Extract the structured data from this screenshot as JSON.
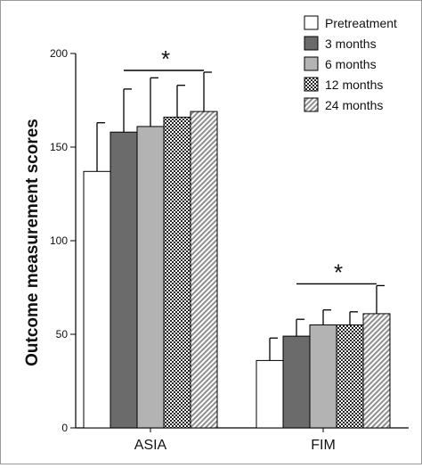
{
  "chart_data": {
    "type": "bar",
    "title": "",
    "xlabel": "",
    "ylabel": "Outcome measurement scores",
    "ylim": [
      0,
      200
    ],
    "yticks": [
      "0",
      "50",
      "100",
      "150",
      "200"
    ],
    "categories": [
      "ASIA",
      "FIM"
    ],
    "series": [
      {
        "name": "Pretreatment",
        "values": [
          137,
          36
        ],
        "errors": [
          26,
          12
        ]
      },
      {
        "name": "3 months",
        "values": [
          158,
          49
        ],
        "errors": [
          23,
          9
        ]
      },
      {
        "name": "6 months",
        "values": [
          161,
          55
        ],
        "errors": [
          26,
          8
        ]
      },
      {
        "name": "12 months",
        "values": [
          166,
          55
        ],
        "errors": [
          17,
          7
        ]
      },
      {
        "name": "24 months",
        "values": [
          169,
          61
        ],
        "errors": [
          21,
          15
        ]
      }
    ],
    "significance": [
      "*",
      "*"
    ],
    "legend_position": "top-right",
    "grid": false,
    "colors": {
      "Pretreatment": "#ffffff",
      "3 months": "#6b6b6b",
      "6 months": "#b3b3b3",
      "12 months": "checkered",
      "24 months": "hatched",
      "axis": "#000000"
    }
  }
}
